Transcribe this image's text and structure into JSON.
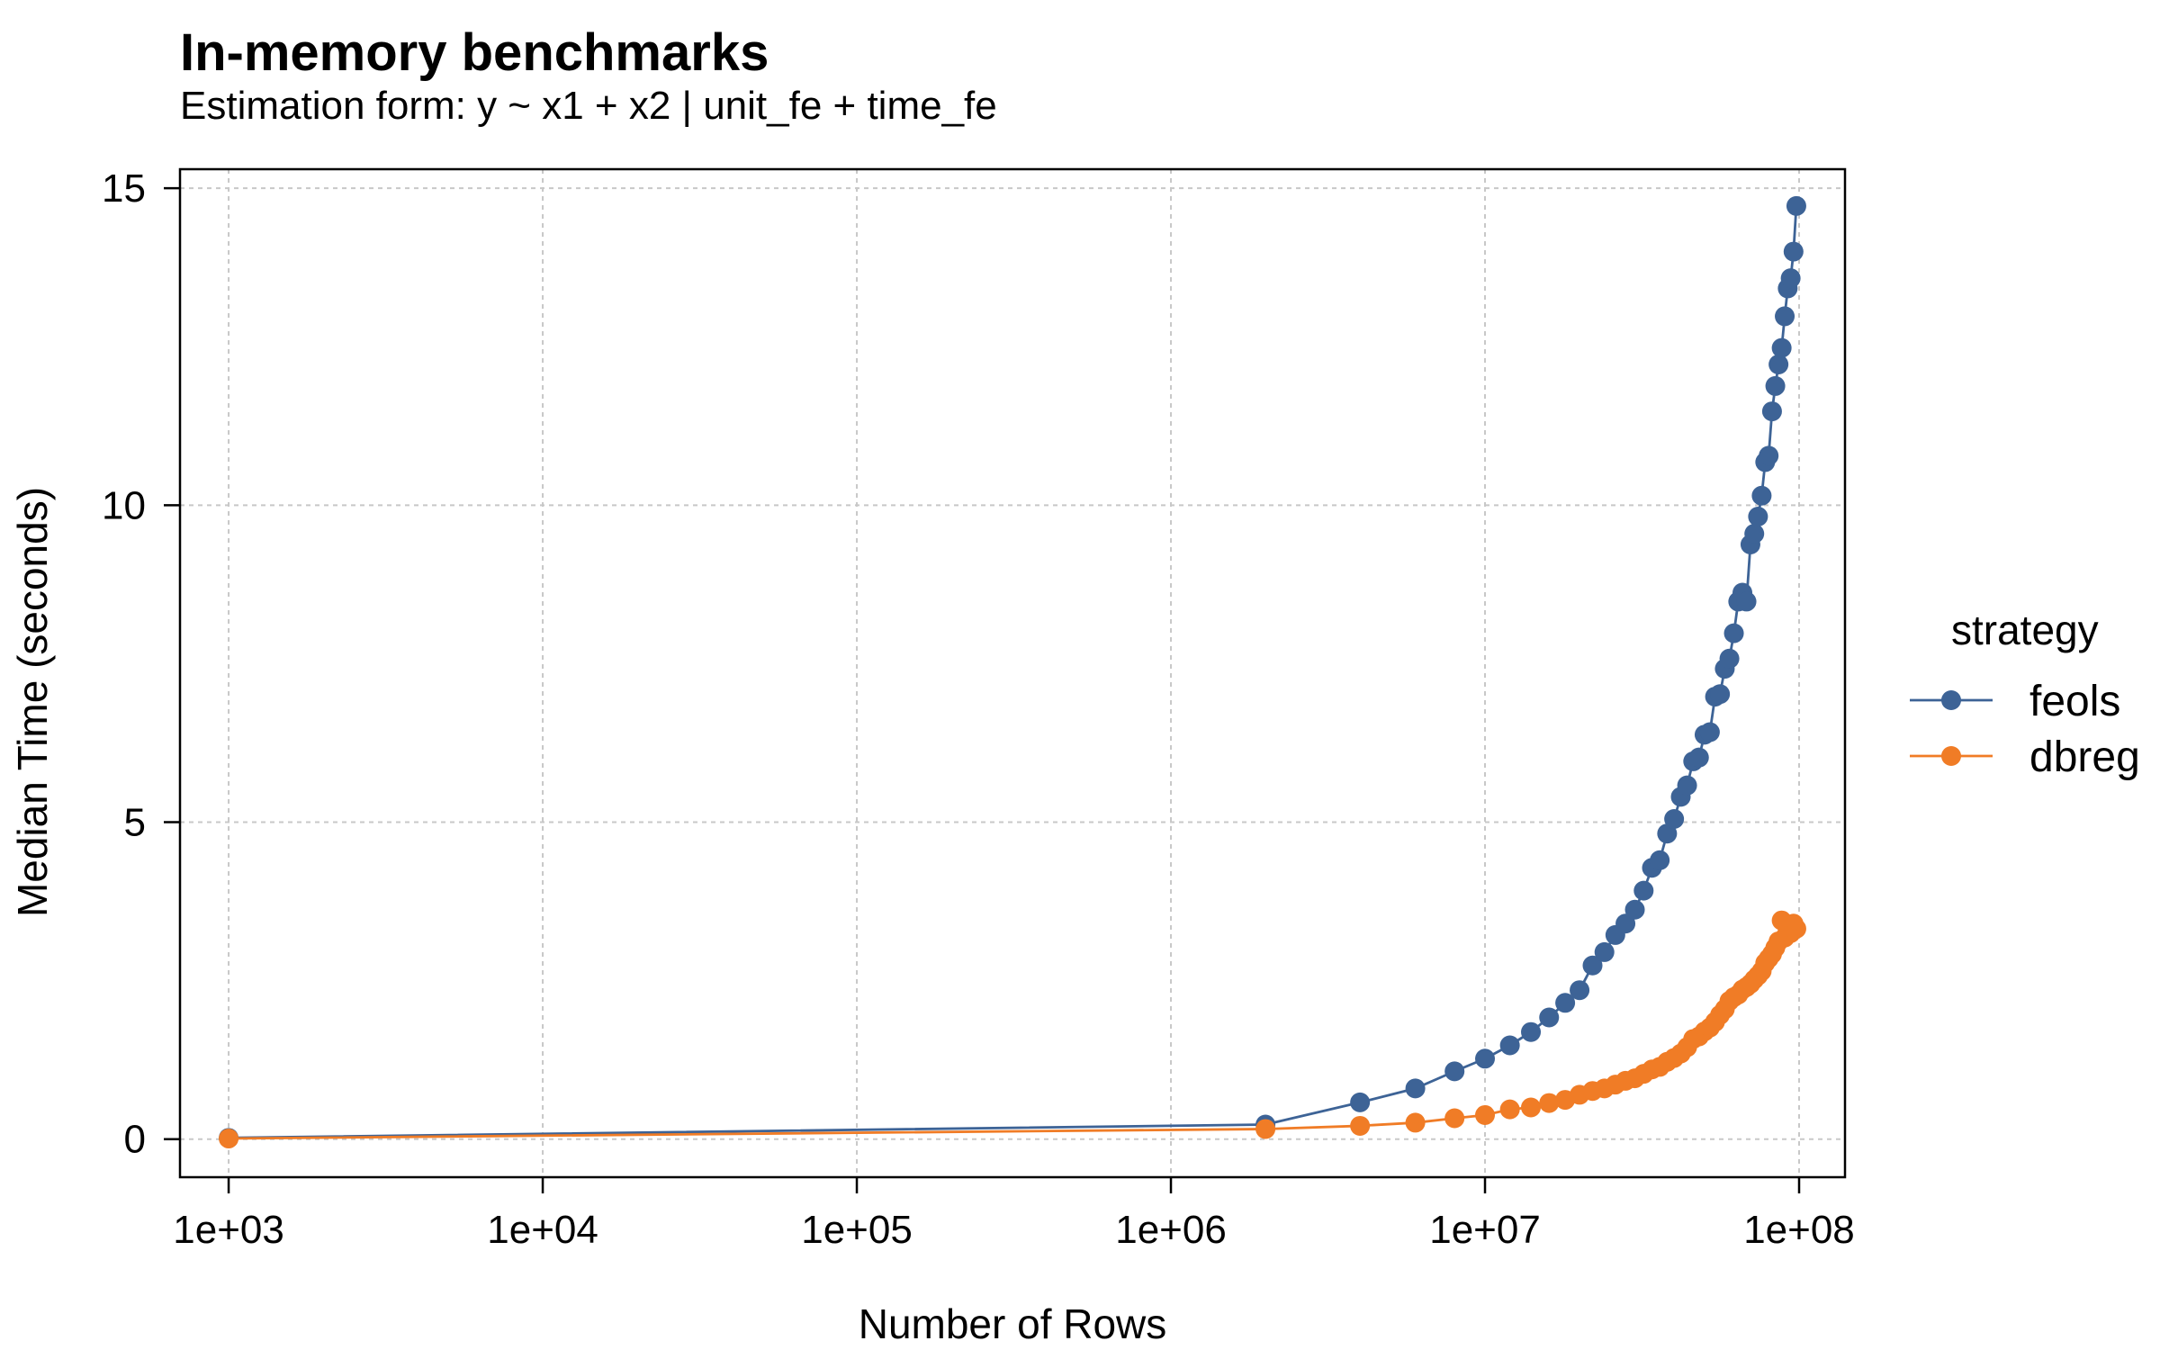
{
  "chart_data": {
    "type": "scatter",
    "title": "In-memory benchmarks",
    "subtitle": "Estimation form: y ~ x1 + x2 | unit_fe + time_fe",
    "xlabel": "Number of Rows",
    "ylabel": "Median Time (seconds)",
    "x_scale": "log10",
    "xlim": [
      700,
      140000000
    ],
    "ylim": [
      -0.6,
      15.3
    ],
    "x_ticks": [
      1000,
      10000,
      100000,
      1000000,
      10000000,
      100000000
    ],
    "x_tick_labels": [
      "1e+03",
      "1e+04",
      "1e+05",
      "1e+06",
      "1e+07",
      "1e+08"
    ],
    "y_ticks": [
      0,
      5,
      10,
      15
    ],
    "y_tick_labels": [
      "0",
      "5",
      "10",
      "15"
    ],
    "grid": true,
    "legend": {
      "title": "strategy",
      "position": "right"
    },
    "series": [
      {
        "name": "feols",
        "color": "#3d6396",
        "points": [
          [
            1000,
            0.02
          ],
          [
            2000000,
            0.23
          ],
          [
            4000000,
            0.58
          ],
          [
            6000000,
            0.8
          ],
          [
            8000000,
            1.07
          ],
          [
            10000000,
            1.27
          ],
          [
            12000000,
            1.48
          ],
          [
            14000000,
            1.69
          ],
          [
            16000000,
            1.92
          ],
          [
            18000000,
            2.15
          ],
          [
            20000000,
            2.35
          ],
          [
            22000000,
            2.74
          ],
          [
            24000000,
            2.95
          ],
          [
            26000000,
            3.22
          ],
          [
            28000000,
            3.4
          ],
          [
            30000000,
            3.62
          ],
          [
            32000000,
            3.92
          ],
          [
            34000000,
            4.28
          ],
          [
            36000000,
            4.4
          ],
          [
            38000000,
            4.82
          ],
          [
            40000000,
            5.05
          ],
          [
            42000000,
            5.4
          ],
          [
            44000000,
            5.58
          ],
          [
            46000000,
            5.96
          ],
          [
            48000000,
            6.02
          ],
          [
            50000000,
            6.38
          ],
          [
            52000000,
            6.42
          ],
          [
            54000000,
            6.98
          ],
          [
            56000000,
            7.02
          ],
          [
            58000000,
            7.42
          ],
          [
            60000000,
            7.58
          ],
          [
            62000000,
            7.98
          ],
          [
            64000000,
            8.48
          ],
          [
            66000000,
            8.62
          ],
          [
            68000000,
            8.48
          ],
          [
            70000000,
            9.38
          ],
          [
            72000000,
            9.55
          ],
          [
            74000000,
            9.82
          ],
          [
            76000000,
            10.15
          ],
          [
            78000000,
            10.68
          ],
          [
            80000000,
            10.78
          ],
          [
            82000000,
            11.48
          ],
          [
            84000000,
            11.88
          ],
          [
            86000000,
            12.22
          ],
          [
            88000000,
            12.48
          ],
          [
            90000000,
            12.98
          ],
          [
            92000000,
            13.42
          ],
          [
            94000000,
            13.58
          ],
          [
            96000000,
            14.0
          ],
          [
            98000000,
            14.72
          ]
        ]
      },
      {
        "name": "dbreg",
        "color": "#f07c26",
        "points": [
          [
            1000,
            0.01
          ],
          [
            2000000,
            0.16
          ],
          [
            4000000,
            0.21
          ],
          [
            6000000,
            0.26
          ],
          [
            8000000,
            0.33
          ],
          [
            10000000,
            0.38
          ],
          [
            12000000,
            0.47
          ],
          [
            14000000,
            0.5
          ],
          [
            16000000,
            0.57
          ],
          [
            18000000,
            0.62
          ],
          [
            20000000,
            0.7
          ],
          [
            22000000,
            0.76
          ],
          [
            24000000,
            0.8
          ],
          [
            26000000,
            0.86
          ],
          [
            28000000,
            0.92
          ],
          [
            30000000,
            0.96
          ],
          [
            32000000,
            1.03
          ],
          [
            34000000,
            1.1
          ],
          [
            36000000,
            1.14
          ],
          [
            38000000,
            1.22
          ],
          [
            40000000,
            1.28
          ],
          [
            42000000,
            1.35
          ],
          [
            44000000,
            1.45
          ],
          [
            46000000,
            1.58
          ],
          [
            48000000,
            1.62
          ],
          [
            50000000,
            1.7
          ],
          [
            52000000,
            1.76
          ],
          [
            54000000,
            1.85
          ],
          [
            56000000,
            1.96
          ],
          [
            58000000,
            2.05
          ],
          [
            60000000,
            2.18
          ],
          [
            62000000,
            2.24
          ],
          [
            64000000,
            2.28
          ],
          [
            66000000,
            2.36
          ],
          [
            68000000,
            2.4
          ],
          [
            70000000,
            2.45
          ],
          [
            72000000,
            2.52
          ],
          [
            74000000,
            2.58
          ],
          [
            76000000,
            2.65
          ],
          [
            78000000,
            2.78
          ],
          [
            80000000,
            2.85
          ],
          [
            82000000,
            2.92
          ],
          [
            84000000,
            3.02
          ],
          [
            86000000,
            3.12
          ],
          [
            88000000,
            3.45
          ],
          [
            90000000,
            3.18
          ],
          [
            92000000,
            3.3
          ],
          [
            94000000,
            3.25
          ],
          [
            96000000,
            3.4
          ],
          [
            98000000,
            3.32
          ]
        ]
      }
    ]
  }
}
